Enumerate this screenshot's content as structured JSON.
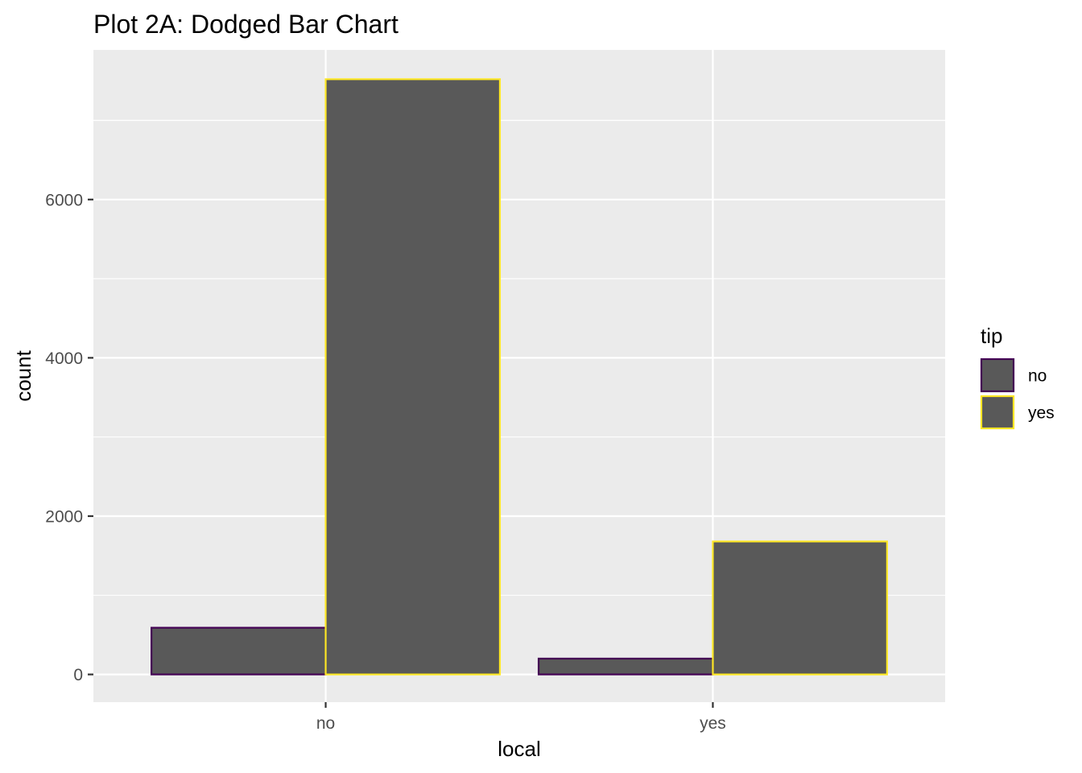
{
  "chart_data": {
    "type": "bar",
    "title": "Plot 2A: Dodged Bar Chart",
    "xlabel": "local",
    "ylabel": "count",
    "categories": [
      "no",
      "yes"
    ],
    "series": [
      {
        "name": "no",
        "values": [
          590,
          200
        ],
        "border": "#440154"
      },
      {
        "name": "yes",
        "values": [
          7520,
          1680
        ],
        "border": "#FDE725"
      }
    ],
    "ylim": [
      -350,
      7890
    ],
    "yticks": [
      0,
      2000,
      4000,
      6000
    ],
    "ytick_labels": [
      "0",
      "2000",
      "4000",
      "6000"
    ],
    "legend": {
      "title": "tip",
      "position": "right"
    },
    "bar_fill": "#595959",
    "panel_background": "#EBEBEB",
    "grid": true
  }
}
